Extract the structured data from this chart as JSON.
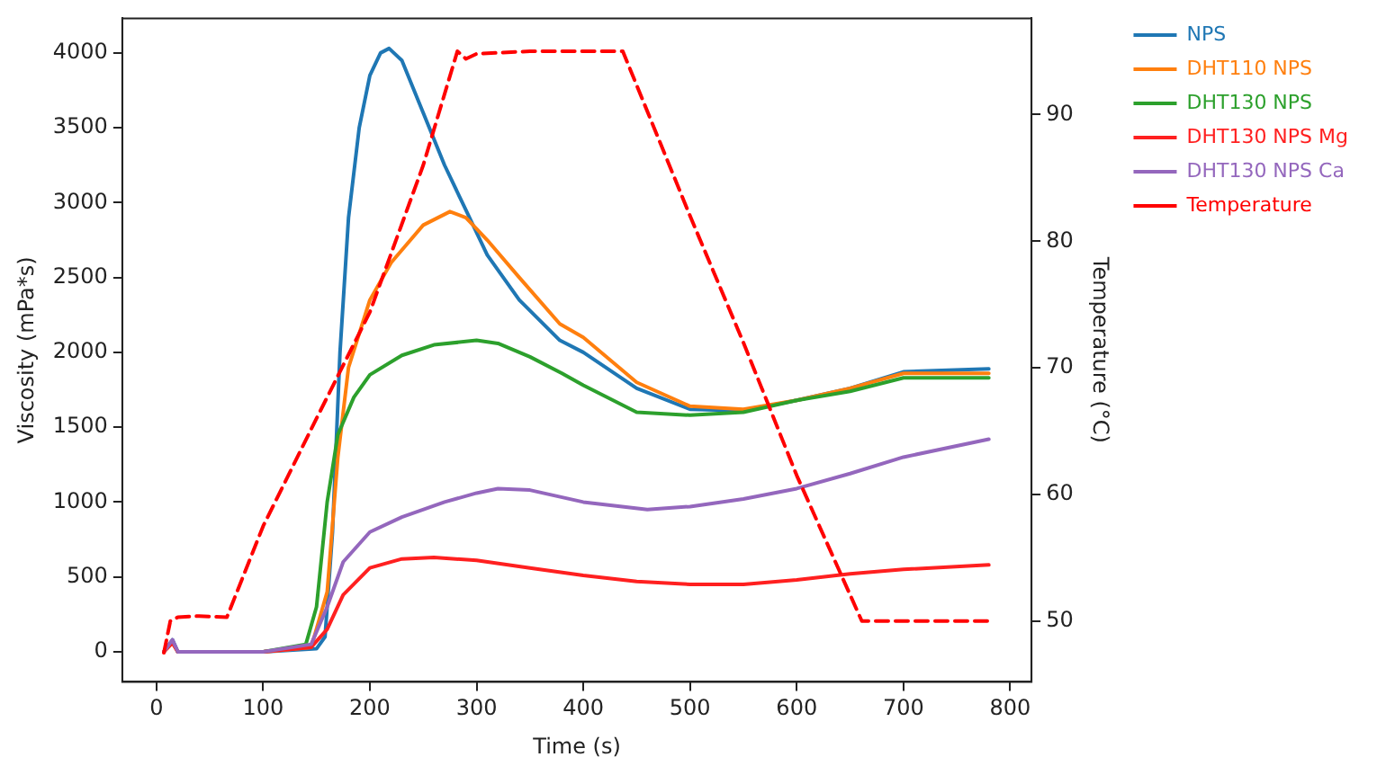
{
  "chart_data": {
    "type": "line",
    "xlabel": "Time (s)",
    "ylabel": "Viscosity (mPa*s)",
    "y2label": "Temperature (°C)",
    "xlim": [
      -32,
      820
    ],
    "xticks": [
      0,
      100,
      200,
      300,
      400,
      500,
      600,
      700,
      800
    ],
    "ylim": [
      -201,
      4231
    ],
    "yticks": [
      0,
      500,
      1000,
      1500,
      2000,
      2500,
      3000,
      3500,
      4000
    ],
    "y2lim": [
      45.2,
      97.6
    ],
    "y2ticks": [
      50,
      60,
      70,
      80,
      90
    ],
    "grid": false,
    "legend": "right",
    "marker": "none",
    "series": [
      {
        "name": "NPS",
        "color": "#1f77b4",
        "x": [
          7,
          15,
          20,
          100,
          150,
          158,
          165,
          172,
          180,
          190,
          200,
          210,
          218,
          230,
          250,
          270,
          290,
          310,
          340,
          378,
          400,
          450,
          500,
          550,
          600,
          650,
          700,
          780
        ],
        "values": [
          0,
          80,
          0,
          0,
          20,
          100,
          800,
          2000,
          2900,
          3500,
          3850,
          4000,
          4030,
          3950,
          3600,
          3250,
          2950,
          2650,
          2350,
          2080,
          2000,
          1760,
          1620,
          1610,
          1680,
          1760,
          1870,
          1890
        ]
      },
      {
        "name": "DHT110 NPS",
        "color": "#ff7f0e",
        "x": [
          7,
          15,
          20,
          100,
          145,
          160,
          170,
          180,
          200,
          220,
          250,
          275,
          290,
          310,
          340,
          378,
          400,
          450,
          500,
          550,
          600,
          650,
          700,
          780
        ],
        "values": [
          0,
          60,
          0,
          0,
          30,
          400,
          1300,
          1900,
          2350,
          2600,
          2850,
          2940,
          2900,
          2750,
          2500,
          2190,
          2100,
          1800,
          1640,
          1620,
          1680,
          1760,
          1860,
          1860
        ]
      },
      {
        "name": "DHT130 NPS",
        "color": "#2ca02c",
        "x": [
          20,
          100,
          140,
          150,
          160,
          170,
          185,
          200,
          230,
          260,
          300,
          320,
          350,
          380,
          400,
          450,
          500,
          550,
          600,
          650,
          700,
          780
        ],
        "values": [
          0,
          0,
          50,
          300,
          1000,
          1450,
          1700,
          1850,
          1980,
          2050,
          2080,
          2060,
          1970,
          1860,
          1780,
          1600,
          1580,
          1600,
          1680,
          1740,
          1830,
          1830
        ]
      },
      {
        "name": "DHT130 NPS Mg",
        "color": "#ff2020",
        "x": [
          7,
          15,
          20,
          100,
          145,
          160,
          175,
          200,
          230,
          260,
          300,
          350,
          400,
          450,
          500,
          550,
          600,
          650,
          700,
          780
        ],
        "values": [
          0,
          60,
          0,
          0,
          30,
          150,
          380,
          560,
          620,
          630,
          610,
          560,
          510,
          470,
          450,
          450,
          480,
          520,
          550,
          580
        ]
      },
      {
        "name": "DHT130 NPS Ca",
        "color": "#9467bd",
        "x": [
          7,
          15,
          20,
          100,
          145,
          160,
          175,
          200,
          230,
          270,
          300,
          320,
          350,
          400,
          460,
          500,
          550,
          600,
          650,
          700,
          780
        ],
        "values": [
          0,
          80,
          0,
          0,
          50,
          300,
          600,
          800,
          900,
          1000,
          1060,
          1090,
          1080,
          1000,
          950,
          970,
          1020,
          1090,
          1190,
          1300,
          1420
        ]
      },
      {
        "name": "Temperature",
        "color": "#ff0000",
        "axis": "y2",
        "line_style": "dashed",
        "x": [
          7,
          13,
          20,
          40,
          66,
          100,
          150,
          200,
          250,
          282,
          290,
          300,
          350,
          400,
          437,
          500,
          550,
          600,
          661,
          700,
          780
        ],
        "values": [
          47.5,
          50,
          50.3,
          50.4,
          50.3,
          57.5,
          66,
          74.4,
          86,
          95,
          94.4,
          94.8,
          95,
          95,
          95,
          82,
          72,
          61.5,
          50,
          50,
          50
        ]
      }
    ]
  }
}
